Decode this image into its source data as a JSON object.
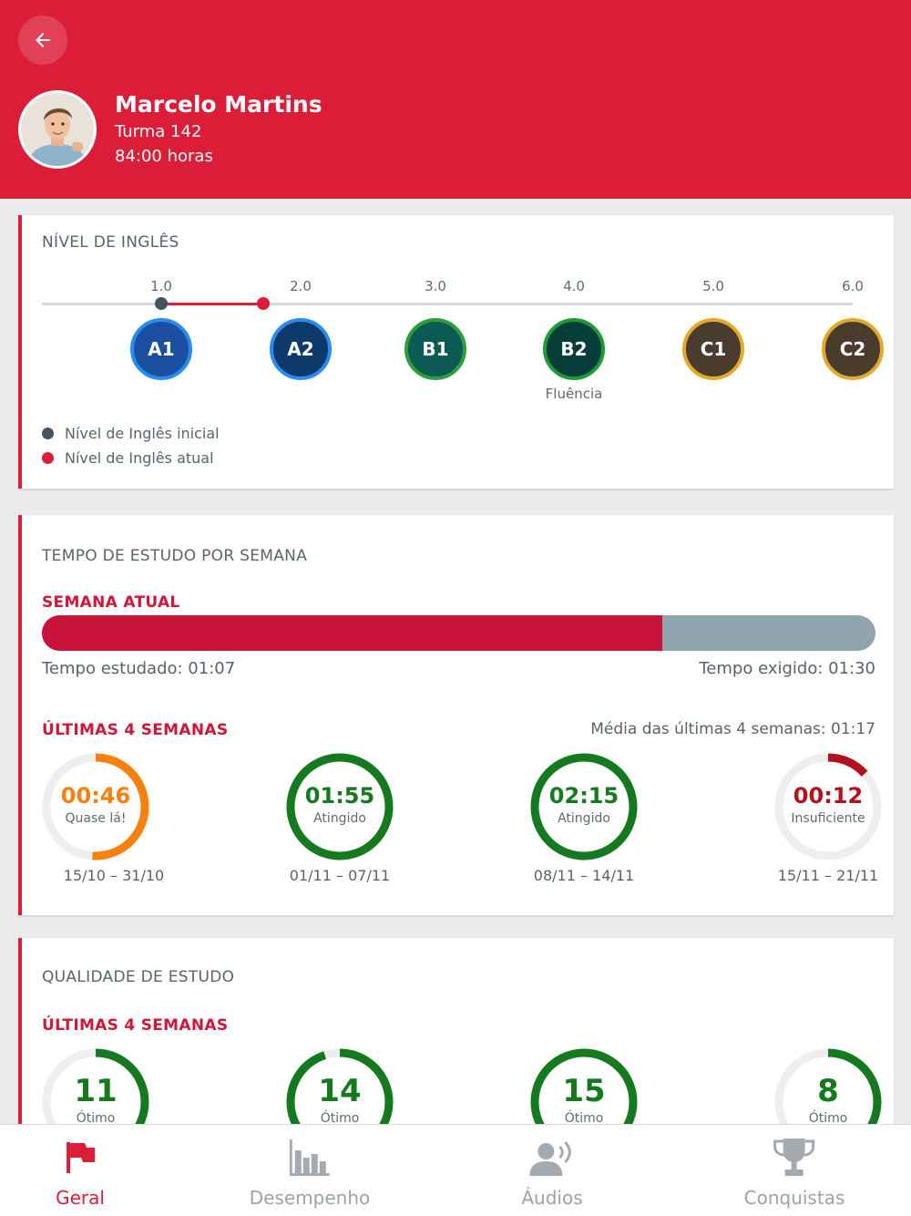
{
  "header": {
    "name": "Marcelo Martins",
    "class_label": "Turma 142",
    "hours_label": "84:00 horas"
  },
  "level_card": {
    "title": "NÍVEL DE INGLÊS",
    "initial_level": 1.0,
    "current_level": 1.73,
    "ticks": [
      "1.0",
      "2.0",
      "3.0",
      "4.0",
      "5.0",
      "6.0"
    ],
    "badges": [
      {
        "label": "A1",
        "fill": "#1b4fa0",
        "ring": "#2a8bf2"
      },
      {
        "label": "A2",
        "fill": "#0e3a6b",
        "ring": "#2a8bf2"
      },
      {
        "label": "B1",
        "fill": "#0b5b54",
        "ring": "#2e9e3b"
      },
      {
        "label": "B2",
        "fill": "#083e3a",
        "ring": "#1e9a37"
      },
      {
        "label": "C1",
        "fill": "#4a3c2c",
        "ring": "#e6a82a"
      },
      {
        "label": "C2",
        "fill": "#4a3c2c",
        "ring": "#e6a82a"
      }
    ],
    "fluency_label": "Fluência",
    "legend_initial": "Nível de Inglês inicial",
    "legend_current": "Nível de Inglês atual",
    "colors": {
      "initial": "#44545f",
      "current": "#dc1d37"
    }
  },
  "study_time_card": {
    "title": "TEMPO DE ESTUDO POR SEMANA",
    "current_week_label": "SEMANA ATUAL",
    "progress_fraction": 0.7444,
    "studied_label": "Tempo estudado: 01:07",
    "required_label": "Tempo exigido: 01:30",
    "last_weeks_label": "ÚLTIMAS 4 SEMANAS",
    "average_label": "Média das últimas 4 semanas: 01:17",
    "weeks": [
      {
        "value": "00:46",
        "status": "Quase lá!",
        "range": "15/10 – 31/10",
        "fraction": 0.51,
        "color": "#f7810f"
      },
      {
        "value": "01:55",
        "status": "Atingido",
        "range": "01/11 – 07/11",
        "fraction": 1.0,
        "color": "#157a1f"
      },
      {
        "value": "02:15",
        "status": "Atingido",
        "range": "08/11 – 14/11",
        "fraction": 1.0,
        "color": "#157a1f"
      },
      {
        "value": "00:12",
        "status": "Insuficiente",
        "range": "15/11 – 21/11",
        "fraction": 0.133,
        "color": "#b3111d"
      }
    ]
  },
  "quality_card": {
    "title": "QUALIDADE DE ESTUDO",
    "last_weeks_label": "ÚLTIMAS 4 SEMANAS",
    "weeks": [
      {
        "value": "11",
        "status": "Ótimo",
        "fraction": 0.55,
        "color": "#157a1f"
      },
      {
        "value": "14",
        "status": "Ótimo",
        "fraction": 0.95,
        "color": "#157a1f"
      },
      {
        "value": "15",
        "status": "Ótimo",
        "fraction": 1.0,
        "color": "#157a1f"
      },
      {
        "value": "8",
        "status": "Ótimo",
        "fraction": 0.6,
        "color": "#157a1f"
      }
    ]
  },
  "nav": {
    "items": [
      {
        "label": "Geral",
        "icon": "flag-icon",
        "active": true
      },
      {
        "label": "Desempenho",
        "icon": "bar-chart-icon",
        "active": false
      },
      {
        "label": "Áudios",
        "icon": "speaking-person-icon",
        "active": false
      },
      {
        "label": "Conquistas",
        "icon": "trophy-icon",
        "active": false
      }
    ]
  }
}
